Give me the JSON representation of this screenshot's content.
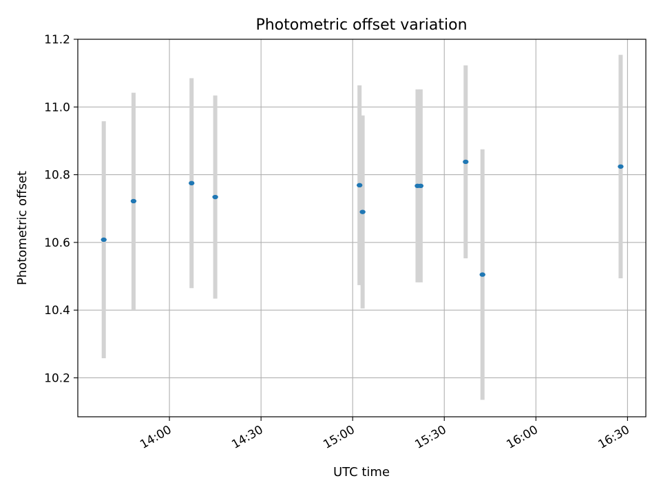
{
  "chart_data": {
    "type": "scatter",
    "title": "Photometric offset variation",
    "xlabel": "UTC time",
    "ylabel": "Photometric offset",
    "xlim": [
      "13:30",
      "16:36"
    ],
    "ylim": [
      10.085,
      11.2
    ],
    "x_ticks": [
      "14:00",
      "14:30",
      "15:00",
      "15:30",
      "16:00",
      "16:30"
    ],
    "y_ticks": [
      10.2,
      10.4,
      10.6,
      10.8,
      11.0,
      11.2
    ],
    "y_tick_labels": [
      "10.2",
      "10.4",
      "10.6",
      "10.8",
      "11.0",
      "11.2"
    ],
    "grid": true,
    "marker_color": "#1f77b4",
    "errorbar_color": "#d3d3d3",
    "points": [
      {
        "x": "13:38:30",
        "y": 10.608,
        "err": 0.35
      },
      {
        "x": "13:48:15",
        "y": 10.722,
        "err": 0.32
      },
      {
        "x": "14:07:15",
        "y": 10.775,
        "err": 0.31
      },
      {
        "x": "14:15:00",
        "y": 10.734,
        "err": 0.3
      },
      {
        "x": "15:02:15",
        "y": 10.769,
        "err": 0.295
      },
      {
        "x": "15:03:15",
        "y": 10.69,
        "err": 0.285
      },
      {
        "x": "15:21:15",
        "y": 10.767,
        "err": 0.285
      },
      {
        "x": "15:22:15",
        "y": 10.767,
        "err": 0.285
      },
      {
        "x": "15:37:00",
        "y": 10.838,
        "err": 0.285
      },
      {
        "x": "15:42:30",
        "y": 10.505,
        "err": 0.37
      },
      {
        "x": "16:27:45",
        "y": 10.824,
        "err": 0.33
      }
    ]
  }
}
